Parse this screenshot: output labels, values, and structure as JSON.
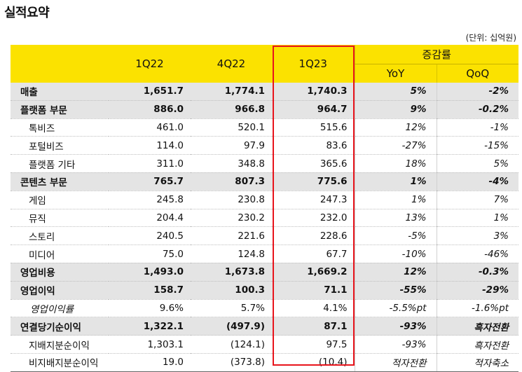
{
  "title": "실적요약",
  "unit": "(단위: 십억원)",
  "header": {
    "col1": "1Q22",
    "col2": "4Q22",
    "col3": "1Q23",
    "change_group": "증감률",
    "yoy": "YoY",
    "qoq": "QoQ"
  },
  "rows": [
    {
      "label": "매출",
      "q1_22": "1,651.7",
      "q4_22": "1,774.1",
      "q1_23": "1,740.3",
      "yoy": "5%",
      "qoq": "-2%"
    },
    {
      "label": "플랫폼 부문",
      "q1_22": "886.0",
      "q4_22": "966.8",
      "q1_23": "964.7",
      "yoy": "9%",
      "qoq": "-0.2%"
    },
    {
      "label": "톡비즈",
      "q1_22": "461.0",
      "q4_22": "520.1",
      "q1_23": "515.6",
      "yoy": "12%",
      "qoq": "-1%"
    },
    {
      "label": "포털비즈",
      "q1_22": "114.0",
      "q4_22": "97.9",
      "q1_23": "83.6",
      "yoy": "-27%",
      "qoq": "-15%"
    },
    {
      "label": "플랫폼 기타",
      "q1_22": "311.0",
      "q4_22": "348.8",
      "q1_23": "365.6",
      "yoy": "18%",
      "qoq": "5%"
    },
    {
      "label": "콘텐츠 부문",
      "q1_22": "765.7",
      "q4_22": "807.3",
      "q1_23": "775.6",
      "yoy": "1%",
      "qoq": "-4%"
    },
    {
      "label": "게임",
      "q1_22": "245.8",
      "q4_22": "230.8",
      "q1_23": "247.3",
      "yoy": "1%",
      "qoq": "7%"
    },
    {
      "label": "뮤직",
      "q1_22": "204.4",
      "q4_22": "230.2",
      "q1_23": "232.0",
      "yoy": "13%",
      "qoq": "1%"
    },
    {
      "label": "스토리",
      "q1_22": "240.5",
      "q4_22": "221.6",
      "q1_23": "228.6",
      "yoy": "-5%",
      "qoq": "3%"
    },
    {
      "label": "미디어",
      "q1_22": "75.0",
      "q4_22": "124.8",
      "q1_23": "67.7",
      "yoy": "-10%",
      "qoq": "-46%"
    },
    {
      "label": "영업비용",
      "q1_22": "1,493.0",
      "q4_22": "1,673.8",
      "q1_23": "1,669.2",
      "yoy": "12%",
      "qoq": "-0.3%"
    },
    {
      "label": "영업이익",
      "q1_22": "158.7",
      "q4_22": "100.3",
      "q1_23": "71.1",
      "yoy": "-55%",
      "qoq": "-29%"
    },
    {
      "label": "영업이익률",
      "q1_22": "9.6%",
      "q4_22": "5.7%",
      "q1_23": "4.1%",
      "yoy": "-5.5%pt",
      "qoq": "-1.6%pt"
    },
    {
      "label": "연결당기순이익",
      "q1_22": "1,322.1",
      "q4_22": "(497.9)",
      "q1_23": "87.1",
      "yoy": "-93%",
      "qoq": "흑자전환"
    },
    {
      "label": "지배지분순이익",
      "q1_22": "1,303.1",
      "q4_22": "(124.1)",
      "q1_23": "97.5",
      "yoy": "-93%",
      "qoq": "흑자전환"
    },
    {
      "label": "비지배지분순이익",
      "q1_22": "19.0",
      "q4_22": "(373.8)",
      "q1_23": "(10.4)",
      "yoy": "적자전환",
      "qoq": "적자축소"
    }
  ]
}
